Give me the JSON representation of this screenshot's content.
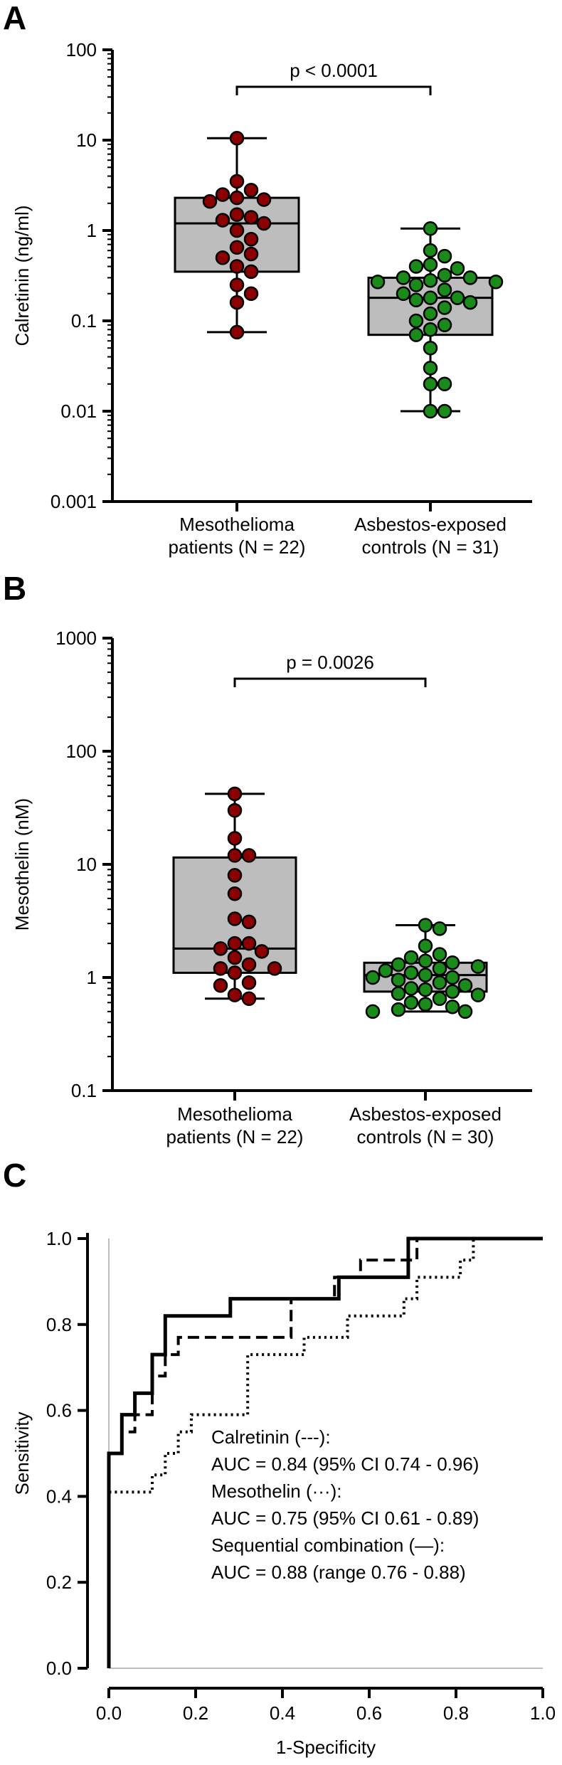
{
  "panels": {
    "a": {
      "letter": "A"
    },
    "b": {
      "letter": "B"
    },
    "c": {
      "letter": "C"
    }
  },
  "colors": {
    "patients": "#8b0000",
    "controls": "#1a8a1a",
    "box_fill": "#bdbdbd",
    "axis": "#000000"
  },
  "chart_data": [
    {
      "type": "box",
      "panel": "A",
      "ylabel": "Calretinin (ng/ml)",
      "yscale": "log",
      "ylim": [
        0.001,
        100
      ],
      "yticks": [
        "0.001",
        "0.01",
        "0.1",
        "1",
        "10",
        "100"
      ],
      "ytick_values": [
        0.001,
        0.01,
        0.1,
        1,
        10,
        100
      ],
      "categories": [
        "Mesothelioma\npatients (N = 22)",
        "Asbestos-exposed\ncontrols (N = 31)"
      ],
      "annotation": "p < 0.0001",
      "groups": [
        {
          "color": "patients",
          "min": 0.075,
          "q1": 0.35,
          "median": 1.2,
          "q3": 2.3,
          "max": 10.5,
          "points": [
            10.5,
            3.5,
            2.8,
            2.5,
            2.3,
            2.2,
            2.1,
            1.5,
            1.4,
            1.3,
            1.2,
            1.0,
            0.8,
            0.65,
            0.55,
            0.5,
            0.4,
            0.35,
            0.25,
            0.2,
            0.16,
            0.075
          ]
        },
        {
          "color": "controls",
          "min": 0.01,
          "q1": 0.07,
          "median": 0.18,
          "q3": 0.3,
          "max": 1.05,
          "points": [
            1.05,
            0.6,
            0.52,
            0.42,
            0.4,
            0.38,
            0.32,
            0.3,
            0.3,
            0.28,
            0.27,
            0.27,
            0.25,
            0.22,
            0.2,
            0.18,
            0.18,
            0.17,
            0.16,
            0.14,
            0.12,
            0.1,
            0.09,
            0.08,
            0.07,
            0.05,
            0.03,
            0.02,
            0.02,
            0.01,
            0.01
          ]
        }
      ]
    },
    {
      "type": "box",
      "panel": "B",
      "ylabel": "Mesothelin (nM)",
      "yscale": "log",
      "ylim": [
        0.1,
        1000
      ],
      "yticks": [
        "0.1",
        "1",
        "10",
        "100",
        "1000"
      ],
      "ytick_values": [
        0.1,
        1,
        10,
        100,
        1000
      ],
      "categories": [
        "Mesothelioma\npatients (N = 22)",
        "Asbestos-exposed\ncontrols (N = 30)"
      ],
      "annotation": "p = 0.0026",
      "groups": [
        {
          "color": "patients",
          "min": 0.65,
          "q1": 1.1,
          "median": 1.8,
          "q3": 11.5,
          "max": 42,
          "points": [
            42,
            30,
            17,
            12,
            12,
            8,
            5.5,
            3.3,
            3.1,
            2.0,
            2.0,
            1.8,
            1.7,
            1.5,
            1.3,
            1.2,
            1.2,
            1.1,
            0.9,
            0.85,
            0.7,
            0.65
          ]
        },
        {
          "color": "controls",
          "min": 0.5,
          "q1": 0.75,
          "median": 1.05,
          "q3": 1.35,
          "max": 2.9,
          "points": [
            2.9,
            2.7,
            1.9,
            1.6,
            1.5,
            1.4,
            1.35,
            1.3,
            1.25,
            1.2,
            1.15,
            1.1,
            1.05,
            1.0,
            1.0,
            0.95,
            0.9,
            0.85,
            0.8,
            0.78,
            0.75,
            0.72,
            0.7,
            0.65,
            0.6,
            0.58,
            0.55,
            0.52,
            0.5,
            0.5
          ]
        }
      ]
    },
    {
      "type": "line",
      "panel": "C",
      "xlabel": "1-Specificity",
      "ylabel": "Sensitivity",
      "xlim": [
        0,
        1
      ],
      "ylim": [
        0,
        1
      ],
      "xticks": [
        "0.0",
        "0.2",
        "0.4",
        "0.6",
        "0.8",
        "1.0"
      ],
      "xtick_values": [
        0,
        0.2,
        0.4,
        0.6,
        0.8,
        1.0
      ],
      "yticks": [
        "0.0",
        "0.2",
        "0.4",
        "0.6",
        "0.8",
        "1.0"
      ],
      "ytick_values": [
        0,
        0.2,
        0.4,
        0.6,
        0.8,
        1.0
      ],
      "legend": [
        "Calretinin (---):",
        "AUC = 0.84 (95% CI 0.74 - 0.96)",
        "Mesothelin (···):",
        "AUC = 0.75 (95% CI 0.61 - 0.89)",
        "Sequential combination (—):",
        "AUC = 0.88 (range 0.76 - 0.88)"
      ],
      "series": [
        {
          "style": "dashed",
          "x": [
            0,
            0,
            0.03,
            0.03,
            0.06,
            0.06,
            0.1,
            0.1,
            0.13,
            0.13,
            0.16,
            0.16,
            0.19,
            0.19,
            0.42,
            0.42,
            0.52,
            0.52,
            0.58,
            0.58,
            0.61,
            0.61,
            0.71,
            0.71,
            0.74,
            0.74,
            1.0
          ],
          "y": [
            0,
            0.5,
            0.5,
            0.55,
            0.55,
            0.59,
            0.59,
            0.68,
            0.68,
            0.73,
            0.73,
            0.77,
            0.77,
            0.77,
            0.77,
            0.86,
            0.86,
            0.91,
            0.91,
            0.95,
            0.95,
            0.95,
            0.95,
            1.0,
            1.0,
            1.0,
            1.0
          ]
        },
        {
          "style": "dotted",
          "x": [
            0,
            0,
            0.1,
            0.1,
            0.13,
            0.13,
            0.16,
            0.16,
            0.19,
            0.19,
            0.32,
            0.32,
            0.35,
            0.35,
            0.45,
            0.45,
            0.48,
            0.48,
            0.55,
            0.55,
            0.68,
            0.68,
            0.71,
            0.71,
            0.81,
            0.81,
            0.84,
            0.84,
            0.87,
            0.87,
            1.0
          ],
          "y": [
            0,
            0.41,
            0.41,
            0.45,
            0.45,
            0.5,
            0.5,
            0.55,
            0.55,
            0.59,
            0.59,
            0.73,
            0.73,
            0.73,
            0.73,
            0.77,
            0.77,
            0.77,
            0.77,
            0.82,
            0.82,
            0.86,
            0.86,
            0.91,
            0.91,
            0.95,
            0.95,
            1.0,
            1.0,
            1.0,
            1.0
          ]
        },
        {
          "style": "solid",
          "x": [
            0,
            0,
            0.03,
            0.03,
            0.06,
            0.06,
            0.1,
            0.1,
            0.13,
            0.13,
            0.28,
            0.28,
            0.53,
            0.53,
            0.69,
            0.69,
            1.0
          ],
          "y": [
            0,
            0.5,
            0.5,
            0.59,
            0.59,
            0.64,
            0.64,
            0.73,
            0.73,
            0.82,
            0.82,
            0.86,
            0.86,
            0.91,
            0.91,
            1.0,
            1.0
          ]
        }
      ]
    }
  ]
}
